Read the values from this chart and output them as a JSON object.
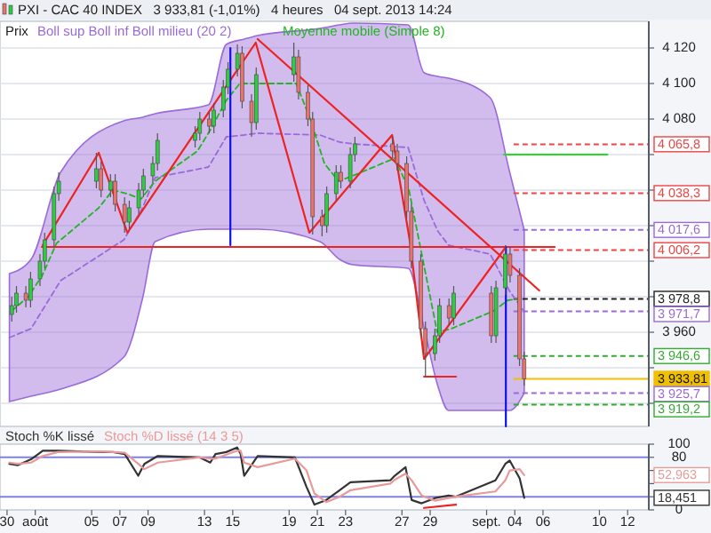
{
  "chart_data": [
    {
      "type": "candlestick",
      "title": "PXI - CAC 40 INDEX   3 933,81 (-1,01%)   4 heures   04 sept. 2013 14:24",
      "xlim": [
        "2013-07-29T12:00",
        "2013-09-13T12:00"
      ],
      "ylim": [
        3907,
        4135
      ],
      "yticks": [
        {
          "value": 4120,
          "label": "4 120"
        },
        {
          "value": 4100,
          "label": "4 100"
        },
        {
          "value": 4080,
          "label": "4 080"
        },
        {
          "value": 4060,
          "label": null
        },
        {
          "value": 4040,
          "label": null
        },
        {
          "value": 4020,
          "label": null
        },
        {
          "value": 4000,
          "label": null
        },
        {
          "value": 3980,
          "label": null
        },
        {
          "value": 3960,
          "label": "3 960"
        },
        {
          "value": 3940,
          "label": null
        },
        {
          "value": 3920,
          "label": null
        }
      ],
      "tick_labels": "y",
      "grid": "y",
      "legend": "top left",
      "series": [
        {
          "name": "Prix",
          "x": [
            "2013-07-30T08:00",
            "2013-07-30T16:00",
            "2013-07-31T08:00",
            "2013-07-31T16:00",
            "2013-08-01T08:00",
            "2013-08-01T16:00",
            "2013-08-02T08:00",
            "2013-08-02T16:00",
            "2013-08-05T08:00",
            "2013-08-05T16:00",
            "2013-08-06T08:00",
            "2013-08-06T16:00",
            "2013-08-07T08:00",
            "2013-08-07T16:00",
            "2013-08-08T08:00",
            "2013-08-08T16:00",
            "2013-08-09T08:00",
            "2013-08-09T16:00",
            "2013-08-12T08:00",
            "2013-08-12T16:00",
            "2013-08-13T08:00",
            "2013-08-13T16:00",
            "2013-08-14T08:00",
            "2013-08-14T16:00",
            "2013-08-15T08:00",
            "2013-08-15T16:00",
            "2013-08-16T08:00",
            "2013-08-16T16:00",
            "2013-08-19T08:00",
            "2013-08-19T16:00",
            "2013-08-20T08:00",
            "2013-08-20T16:00",
            "2013-08-21T08:00",
            "2013-08-21T16:00",
            "2013-08-22T08:00",
            "2013-08-22T16:00",
            "2013-08-23T08:00",
            "2013-08-23T16:00",
            "2013-08-26T08:00",
            "2013-08-26T16:00",
            "2013-08-27T08:00",
            "2013-08-27T16:00",
            "2013-08-28T08:00",
            "2013-08-28T16:00",
            "2013-08-29T08:00",
            "2013-08-29T16:00",
            "2013-08-30T08:00",
            "2013-08-30T16:00",
            "2013-09-02T08:00",
            "2013-09-02T16:00",
            "2013-09-03T08:00",
            "2013-09-03T16:00",
            "2013-09-04T08:00",
            "2013-09-04T16:00"
          ],
          "ohlc": [
            [
              3970,
              3980,
              3966,
              3975
            ],
            [
              3975,
              3986,
              3971,
              3982
            ],
            [
              3982,
              3986,
              3974,
              3978
            ],
            [
              3978,
              3994,
              3974,
              3990
            ],
            [
              3990,
              4004,
              3986,
              4000
            ],
            [
              4000,
              4016,
              3996,
              4012
            ],
            [
              4012,
              4042,
              4008,
              4038
            ],
            [
              4038,
              4050,
              4034,
              4045
            ],
            [
              4045,
              4061,
              4041,
              4052
            ],
            [
              4052,
              4056,
              4036,
              4040
            ],
            [
              4040,
              4049,
              4036,
              4045
            ],
            [
              4045,
              4049,
              4028,
              4032
            ],
            [
              4032,
              4036,
              4016,
              4022
            ],
            [
              4022,
              4034,
              4018,
              4030
            ],
            [
              4030,
              4044,
              4026,
              4040
            ],
            [
              4040,
              4052,
              4036,
              4048
            ],
            [
              4048,
              4059,
              4044,
              4055
            ],
            [
              4055,
              4072,
              4051,
              4068
            ],
            [
              4068,
              4076,
              4064,
              4072
            ],
            [
              4072,
              4084,
              4068,
              4080
            ],
            [
              4080,
              4084,
              4072,
              4076
            ],
            [
              4076,
              4089,
              4072,
              4085
            ],
            [
              4085,
              4102,
              4081,
              4098
            ],
            [
              4098,
              4112,
              4094,
              4108
            ],
            [
              4108,
              4122,
              4104,
              4117
            ],
            [
              4117,
              4121,
              4086,
              4090
            ],
            [
              4090,
              4094,
              4070,
              4078
            ],
            [
              4078,
              4109,
              4074,
              4105
            ],
            [
              4105,
              4123,
              4101,
              4115
            ],
            [
              4115,
              4119,
              4091,
              4095
            ],
            [
              4095,
              4099,
              4076,
              4080
            ],
            [
              4080,
              4084,
              4015,
              4025
            ],
            [
              4025,
              4029,
              4014,
              4020
            ],
            [
              4020,
              4042,
              4016,
              4038
            ],
            [
              4038,
              4054,
              4034,
              4050
            ],
            [
              4050,
              4054,
              4041,
              4045
            ],
            [
              4045,
              4064,
              4041,
              4060
            ],
            [
              4060,
              4070,
              4056,
              4066
            ],
            [
              4066,
              4070,
              4058,
              4062
            ],
            [
              4062,
              4066,
              4051,
              4055
            ],
            [
              4055,
              4059,
              4024,
              4028
            ],
            [
              4028,
              4032,
              3996,
              4000
            ],
            [
              4000,
              4004,
              3958,
              3962
            ],
            [
              3962,
              3966,
              3935,
              3948
            ],
            [
              3948,
              3962,
              3944,
              3958
            ],
            [
              3958,
              3979,
              3954,
              3975
            ],
            [
              3975,
              3979,
              3964,
              3968
            ],
            [
              3968,
              3986,
              3964,
              3982
            ],
            [
              3982,
              3986,
              3954,
              3958
            ],
            [
              3958,
              3989,
              3954,
              3985
            ],
            [
              3985,
              4009,
              3981,
              4004
            ],
            [
              4004,
              4008,
              3988,
              3992
            ],
            [
              3992,
              3996,
              3941,
              3945
            ],
            [
              3945,
              3949,
              3930,
              3933.81
            ]
          ],
          "colors": [
            "#2ecc40",
            "#2ecc40",
            "#e8736c",
            "#2ecc40",
            "#2ecc40",
            "#2ecc40",
            "#2ecc40",
            "#2ecc40",
            "#2ecc40",
            "#e8736c",
            "#2ecc40",
            "#e8736c",
            "#e8736c",
            "#2ecc40",
            "#2ecc40",
            "#2ecc40",
            "#2ecc40",
            "#2ecc40",
            "#2ecc40",
            "#2ecc40",
            "#e8736c",
            "#2ecc40",
            "#2ecc40",
            "#2ecc40",
            "#2ecc40",
            "#e8736c",
            "#e8736c",
            "#2ecc40",
            "#2ecc40",
            "#e8736c",
            "#e8736c",
            "#e8736c",
            "#e8736c",
            "#2ecc40",
            "#2ecc40",
            "#e8736c",
            "#2ecc40",
            "#2ecc40",
            "#e8736c",
            "#e8736c",
            "#e8736c",
            "#e8736c",
            "#e8736c",
            "#e8736c",
            "#2ecc40",
            "#2ecc40",
            "#e8736c",
            "#2ecc40",
            "#e8736c",
            "#2ecc40",
            "#2ecc40",
            "#e8736c",
            "#e8736c",
            "#e8736c"
          ]
        },
        {
          "type": "line",
          "name": "Boll sup Boll inf Boll milieu (20 2)",
          "color": "#9a6ad8",
          "line_style": "dashed",
          "x": [
            "2013-07-30T04:00",
            "2013-07-31T16:48",
            "2013-08-02T19:02",
            "2013-08-07T06:43",
            "2013-08-08T14:34",
            "2013-08-09T12:00",
            "2013-08-13T06:43",
            "2013-08-14T13:07",
            "2013-08-15T19:31",
            "2013-08-16T18:24",
            "2013-08-21T04:29",
            "2013-08-22T13:55",
            "2013-08-23T12:48",
            "2013-08-27T10:34",
            "2013-08-28T13:55",
            "2013-08-29T12:48",
            "2013-08-30T07:12",
            "2013-09-02T06:05",
            "2013-09-03T15:22",
            "2013-09-04T16:00"
          ],
          "values": [
            3957,
            3962,
            3989,
            4012,
            4030,
            4047,
            4053,
            4070,
            4071,
            4072,
            4071,
            4067,
            4066,
            4064,
            4034,
            4017,
            4009,
            4004,
            3983,
            3971.7
          ],
          "lower": [
            3921,
            3924,
            3928,
            3946,
            3979,
            4011,
            4018,
            4018,
            4018,
            4018,
            4011,
            4001,
            3998,
            3996,
            3962,
            3930,
            3916,
            3916,
            3916,
            3925.7
          ],
          "upper": [
            3993,
            4001,
            4050,
            4079,
            4081,
            4083,
            4088,
            4122,
            4125,
            4127,
            4131,
            4133,
            4134,
            4133,
            4106,
            4104,
            4103,
            4092,
            4050,
            4017.6
          ]
        },
        {
          "type": "line",
          "name": "Moyenne mobile (Simple 8)",
          "color": "#22b522",
          "line_style": "dashed",
          "x": [
            "2013-07-30T08:00",
            "2013-07-31T12:00",
            "2013-08-01T12:00",
            "2013-08-02T12:00",
            "2013-08-05T12:00",
            "2013-08-06T12:00",
            "2013-08-07T12:00",
            "2013-08-08T12:00",
            "2013-08-09T12:00",
            "2013-08-12T12:00",
            "2013-08-13T12:00",
            "2013-08-14T12:00",
            "2013-08-15T12:00",
            "2013-08-16T12:00",
            "2013-08-19T12:00",
            "2013-08-20T12:00",
            "2013-08-21T12:00",
            "2013-08-22T12:00",
            "2013-08-23T12:00",
            "2013-08-26T12:00",
            "2013-08-27T12:00",
            "2013-08-28T12:00",
            "2013-08-29T12:00",
            "2013-08-30T12:00",
            "2013-09-02T12:00",
            "2013-09-03T12:00",
            "2013-09-04T08:48"
          ],
          "values": [
            3972,
            3980,
            3992,
            4010,
            4030,
            4040,
            4038,
            4035,
            4045,
            4062,
            4075,
            4090,
            4100,
            4100,
            4100,
            4080,
            4055,
            4045,
            4048,
            4058,
            4040,
            4000,
            3960,
            3962,
            3972,
            3978,
            3979
          ]
        },
        {
          "type": "line",
          "color": "#ee2222",
          "x": [
            "2013-08-01T12:48",
            "2013-08-05T12:00",
            "2013-08-07T12:48",
            "2013-08-16T15:12",
            "2013-08-20T10:24",
            "2013-08-26T07:12",
            "2013-08-27T13:36",
            "2013-08-28T13:36",
            "2013-09-03T08:48"
          ],
          "values": [
            4009,
            4061,
            4016,
            4123,
            4016,
            4071,
            4011,
            3945,
            4008
          ]
        },
        {
          "type": "line",
          "color": "#ee2222",
          "x": [
            "2013-08-16T18:24",
            "2013-09-05T17:36"
          ],
          "values": [
            4125,
            3983.5
          ]
        },
        {
          "type": "line",
          "color": "#ee2222",
          "x": [
            "2013-08-01T11:12",
            "2013-09-06T20:00"
          ],
          "values": [
            4008,
            4008
          ]
        },
        {
          "type": "line",
          "color": "#ee2222",
          "x": [
            "2013-08-28T13:36",
            "2013-08-30T20:00"
          ],
          "values": [
            3935,
            3935
          ]
        },
        {
          "type": "line",
          "color": "#1010ee",
          "x": [
            "2013-08-14T20:00",
            "2013-08-14T20:00"
          ],
          "values": [
            4120,
            4009
          ]
        },
        {
          "type": "line",
          "color": "#1010ee",
          "x": [
            "2013-09-03T08:48",
            "2013-09-03T08:48"
          ],
          "values": [
            4008,
            3907
          ]
        },
        {
          "type": "line",
          "color": "#22dd22",
          "x": [
            "2013-09-03T05:36",
            "2013-09-10T13:36"
          ],
          "values": [
            4060,
            4060
          ]
        }
      ],
      "ref_lines": [
        {
          "axis": "y",
          "value": 4065.8,
          "label": "4 065,8",
          "color": "#ee4444",
          "line_style": "dashed"
        },
        {
          "axis": "y",
          "value": 4038.3,
          "label": "4 038,3",
          "color": "#ee4444",
          "line_style": "dashed"
        },
        {
          "axis": "y",
          "value": 4017.6,
          "label": "4 017,6",
          "color": "#9a6ad8",
          "line_style": "dashed"
        },
        {
          "axis": "y",
          "value": 4006.2,
          "label": "4 006,2",
          "color": "#ee4444",
          "line_style": "dashed"
        },
        {
          "axis": "y",
          "value": 3978.8,
          "label": "3 978,8",
          "color": "#222222",
          "line_style": "dashed"
        },
        {
          "axis": "y",
          "value": 3971.7,
          "label": "3 971,7",
          "color": "#9a6ad8",
          "line_style": "dashed"
        },
        {
          "axis": "y",
          "value": 3946.6,
          "label": "3 946,6",
          "color": "#33aa33",
          "line_style": "dashed"
        },
        {
          "axis": "y",
          "value": 3933.81,
          "label": "3 933,81",
          "color": "#f0c000",
          "line_style": "solid"
        },
        {
          "axis": "y",
          "value": 3925.7,
          "label": "3 925,7",
          "color": "#9a6ad8",
          "line_style": "dashed"
        },
        {
          "axis": "y",
          "value": 3919.2,
          "label": "3 919,2",
          "color": "#33aa33",
          "line_style": "dashed"
        }
      ]
    },
    {
      "type": "line",
      "xlim": [
        "2013-07-29T12:00",
        "2013-09-13T12:00"
      ],
      "ylim": [
        0,
        100
      ],
      "yticks": [
        {
          "value": 100,
          "label": "100"
        },
        {
          "value": 80,
          "label": "80"
        },
        {
          "value": 60,
          "label": null
        },
        {
          "value": 40,
          "label": null
        },
        {
          "value": 20,
          "label": null
        },
        {
          "value": 0,
          "label": "0"
        }
      ],
      "xticks": [
        {
          "value": "2013-07-30",
          "label": "30"
        },
        {
          "value": "2013-08-01",
          "label": "août"
        },
        {
          "value": "2013-08-05",
          "label": "05"
        },
        {
          "value": "2013-08-07",
          "label": "07"
        },
        {
          "value": "2013-08-09",
          "label": "09"
        },
        {
          "value": "2013-08-13",
          "label": "13"
        },
        {
          "value": "2013-08-15",
          "label": "15"
        },
        {
          "value": "2013-08-19",
          "label": "19"
        },
        {
          "value": "2013-08-21",
          "label": "21"
        },
        {
          "value": "2013-08-23",
          "label": "23"
        },
        {
          "value": "2013-08-27",
          "label": "27"
        },
        {
          "value": "2013-08-29",
          "label": "29"
        },
        {
          "value": "2013-09-02",
          "label": "sept."
        },
        {
          "value": "2013-09-04",
          "label": "04"
        },
        {
          "value": "2013-09-06",
          "label": "06"
        },
        {
          "value": "2013-09-10",
          "label": "10"
        },
        {
          "value": "2013-09-12",
          "label": "12"
        }
      ],
      "legend": "top left",
      "series": [
        {
          "name": "Stoch %K lissé",
          "color": "#333333",
          "x": [
            "2013-07-30T04:00",
            "2013-07-30T17:55",
            "2013-07-31T16:48",
            "2013-08-01T12:48",
            "2013-08-02T14:34",
            "2013-08-05T13:26",
            "2013-08-06T12:19",
            "2013-08-07T08:19",
            "2013-08-08T07:12",
            "2013-08-08T17:36",
            "2013-08-09T16:29",
            "2013-08-12T15:22",
            "2013-08-13T09:46",
            "2013-08-13T18:43",
            "2013-08-14T13:07",
            "2013-08-15T07:31",
            "2013-08-15T13:26",
            "2013-08-15T19:31",
            "2013-08-16T18:24",
            "2013-08-19T09:46",
            "2013-08-20T05:36",
            "2013-08-20T19:02",
            "2013-08-21T15:02",
            "2013-08-22T13:55",
            "2013-08-23T08:19",
            "2013-08-26T04:10",
            "2013-08-26T11:41",
            "2013-08-27T06:05",
            "2013-08-27T16:29",
            "2013-08-28T09:26",
            "2013-08-29T08:19",
            "2013-08-30T07:12",
            "2013-08-30T19:02",
            "2013-09-02T15:02",
            "2013-09-03T07:50",
            "2013-09-03T15:22",
            "2013-09-04T08:19",
            "2013-09-04T16:00"
          ],
          "values": [
            70,
            68,
            77,
            90,
            90,
            88,
            88,
            85,
            52,
            70,
            82,
            80,
            72,
            85,
            88,
            95,
            85,
            52,
            82,
            80,
            35,
            8,
            15,
            30,
            42,
            45,
            52,
            65,
            15,
            10,
            18,
            22,
            20,
            45,
            70,
            75,
            48,
            18.451
          ]
        },
        {
          "name": "Stoch %D lissé (14 3 5)",
          "color": "#e89a9a",
          "x": [
            "2013-07-30T04:00",
            "2013-07-30T17:55",
            "2013-07-31T16:48",
            "2013-08-01T12:48",
            "2013-08-02T14:34",
            "2013-08-05T13:26",
            "2013-08-06T12:19",
            "2013-08-07T08:19",
            "2013-08-08T07:12",
            "2013-08-08T17:36",
            "2013-08-09T16:29",
            "2013-08-12T15:22",
            "2013-08-13T09:46",
            "2013-08-13T18:43",
            "2013-08-14T13:07",
            "2013-08-15T07:31",
            "2013-08-15T13:26",
            "2013-08-15T19:31",
            "2013-08-16T18:24",
            "2013-08-19T09:46",
            "2013-08-20T05:36",
            "2013-08-20T19:02",
            "2013-08-21T15:02",
            "2013-08-22T13:55",
            "2013-08-23T08:19",
            "2013-08-26T04:10",
            "2013-08-26T11:41",
            "2013-08-27T06:05",
            "2013-08-27T16:29",
            "2013-08-28T09:26",
            "2013-08-29T08:19",
            "2013-08-30T07:12",
            "2013-08-30T19:02",
            "2013-09-02T15:02",
            "2013-09-03T07:50",
            "2013-09-03T15:22",
            "2013-09-04T08:19",
            "2013-09-04T16:00"
          ],
          "values": [
            72,
            70,
            72,
            82,
            88,
            89,
            88,
            87,
            70,
            62,
            72,
            80,
            78,
            78,
            84,
            90,
            90,
            72,
            65,
            78,
            60,
            25,
            12,
            20,
            30,
            40,
            46,
            55,
            45,
            22,
            14,
            18,
            20,
            28,
            45,
            60,
            62,
            52.963
          ]
        },
        {
          "color": "#ee2222",
          "x": [
            "2013-08-28T13:36",
            "2013-08-30T20:00"
          ],
          "values": [
            3,
            8
          ]
        }
      ],
      "ref_lines": [
        {
          "axis": "y",
          "value": 80,
          "color": "#8080e0"
        },
        {
          "axis": "y",
          "value": 20,
          "color": "#8080e0"
        }
      ],
      "annotations": [
        "18,451",
        "52,963"
      ]
    }
  ]
}
